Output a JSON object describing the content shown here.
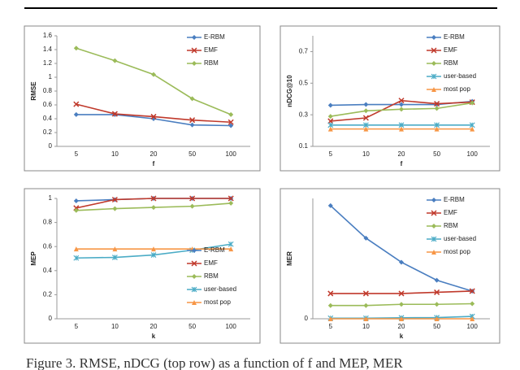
{
  "caption": "Figure 3. RMSE, nDCG (top row) as a function of f and MEP, MER",
  "chart_data": [
    {
      "type": "line",
      "ylabel": "RMSE",
      "xlabel": "f",
      "categories": [
        "5",
        "10",
        "20",
        "50",
        "100"
      ],
      "ylim": [
        0,
        1.6
      ],
      "yticks": [
        0,
        0.2,
        0.4,
        0.6,
        0.8,
        1,
        1.2,
        1.4,
        1.6
      ],
      "legend": "upper right",
      "series": [
        {
          "name": "E-RBM",
          "color": "#4a7ec0",
          "marker": "diamond",
          "values": [
            0.46,
            0.46,
            0.4,
            0.31,
            0.3
          ]
        },
        {
          "name": "EMF",
          "color": "#c0392b",
          "marker": "x",
          "values": [
            0.61,
            0.47,
            0.43,
            0.38,
            0.35
          ]
        },
        {
          "name": "RBM",
          "color": "#9bbb59",
          "marker": "diamond",
          "values": [
            1.42,
            1.24,
            1.04,
            0.69,
            0.46
          ]
        }
      ]
    },
    {
      "type": "line",
      "ylabel": "nDCG@10",
      "xlabel": "f",
      "categories": [
        "5",
        "10",
        "20",
        "50",
        "100"
      ],
      "ylim": [
        0.1,
        0.8
      ],
      "yticks": [
        0.1,
        0.3,
        0.5,
        0.7
      ],
      "legend": "upper right",
      "series": [
        {
          "name": "E-RBM",
          "color": "#4a7ec0",
          "marker": "diamond",
          "values": [
            0.36,
            0.365,
            0.365,
            0.365,
            0.385
          ]
        },
        {
          "name": "EMF",
          "color": "#c0392b",
          "marker": "x",
          "values": [
            0.26,
            0.28,
            0.39,
            0.37,
            0.38
          ]
        },
        {
          "name": "RBM",
          "color": "#9bbb59",
          "marker": "diamond",
          "values": [
            0.29,
            0.325,
            0.335,
            0.34,
            0.375
          ]
        },
        {
          "name": "user-based",
          "color": "#4bacc6",
          "marker": "star",
          "values": [
            0.235,
            0.235,
            0.235,
            0.235,
            0.235
          ]
        },
        {
          "name": "most pop",
          "color": "#f79646",
          "marker": "triangle",
          "values": [
            0.21,
            0.21,
            0.21,
            0.21,
            0.21
          ]
        }
      ]
    },
    {
      "type": "line",
      "ylabel": "MEP",
      "xlabel": "k",
      "categories": [
        "5",
        "10",
        "20",
        "50",
        "100"
      ],
      "ylim": [
        0,
        1
      ],
      "yticks": [
        0,
        0.2,
        0.4,
        0.6,
        0.8,
        1
      ],
      "legend": "lower right",
      "series": [
        {
          "name": "E-RBM",
          "color": "#4a7ec0",
          "marker": "diamond",
          "values": [
            0.98,
            0.99,
            1.0,
            1.0,
            1.0
          ]
        },
        {
          "name": "EMF",
          "color": "#c0392b",
          "marker": "x",
          "values": [
            0.92,
            0.99,
            1.0,
            1.0,
            1.0
          ]
        },
        {
          "name": "RBM",
          "color": "#9bbb59",
          "marker": "diamond",
          "values": [
            0.9,
            0.915,
            0.925,
            0.935,
            0.96
          ]
        },
        {
          "name": "user-based",
          "color": "#4bacc6",
          "marker": "star",
          "values": [
            0.505,
            0.51,
            0.53,
            0.57,
            0.62
          ]
        },
        {
          "name": "most pop",
          "color": "#f79646",
          "marker": "triangle",
          "values": [
            0.58,
            0.58,
            0.58,
            0.58,
            0.58
          ]
        }
      ]
    },
    {
      "type": "line",
      "ylabel": "MER",
      "xlabel": "k",
      "categories": [
        "5",
        "10",
        "20",
        "50",
        "100"
      ],
      "ylim": [
        0,
        1
      ],
      "yticks": [
        0
      ],
      "legend": "upper right",
      "series": [
        {
          "name": "E-RBM",
          "color": "#4a7ec0",
          "marker": "diamond",
          "values": [
            0.94,
            0.67,
            0.47,
            0.32,
            0.23
          ]
        },
        {
          "name": "EMF",
          "color": "#c0392b",
          "marker": "x",
          "values": [
            0.21,
            0.21,
            0.21,
            0.22,
            0.23
          ]
        },
        {
          "name": "RBM",
          "color": "#9bbb59",
          "marker": "diamond",
          "values": [
            0.11,
            0.11,
            0.12,
            0.12,
            0.125
          ]
        },
        {
          "name": "user-based",
          "color": "#4bacc6",
          "marker": "star",
          "values": [
            0.005,
            0.005,
            0.008,
            0.01,
            0.02
          ]
        },
        {
          "name": "most pop",
          "color": "#f79646",
          "marker": "triangle",
          "values": [
            0,
            0,
            0,
            0,
            0
          ]
        }
      ]
    }
  ]
}
